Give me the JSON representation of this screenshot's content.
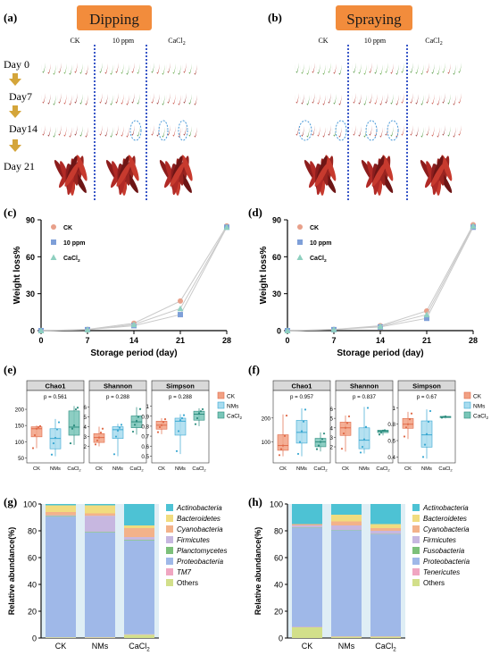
{
  "panel_labels": [
    "(a)",
    "(b)",
    "(c)",
    "(d)",
    "(e)",
    "(f)",
    "(g)",
    "(h)"
  ],
  "photos": {
    "dipping_title": "Dipping",
    "spraying_title": "Spraying",
    "columns": [
      "CK",
      "10 ppm",
      "CaCl2"
    ],
    "days": [
      "Day 0",
      "Day7",
      "Day14",
      "Day 21"
    ]
  },
  "colors": {
    "ck": "#e8a08a",
    "ppm": "#7e9fd8",
    "cacl2": "#8fd0c0",
    "banner": "#f28c3c",
    "divider": "#3a58c8",
    "arrow": "#d4a53a",
    "box_ck": "#f2a184",
    "box_nms": "#a8dcef",
    "box_cacl2": "#79c6b8"
  },
  "chart_data": [
    {
      "panel": "(c)",
      "type": "line",
      "xlabel": "Storage period (day)",
      "ylabel": "Weight loss%",
      "x": [
        0,
        7,
        14,
        21,
        28
      ],
      "xlim": [
        0,
        28
      ],
      "ylim": [
        0,
        90
      ],
      "yticks": [
        "0",
        "30",
        "60",
        "90"
      ],
      "xticks": [
        "0",
        "7",
        "14",
        "21",
        "28"
      ],
      "series": [
        {
          "name": "CK",
          "values": [
            0,
            1,
            6,
            24,
            85
          ]
        },
        {
          "name": "10 ppm",
          "values": [
            0,
            0.8,
            4,
            13,
            84
          ]
        },
        {
          "name": "CaCl2",
          "values": [
            0,
            0.7,
            5,
            18,
            84
          ]
        }
      ]
    },
    {
      "panel": "(d)",
      "type": "line",
      "xlabel": "Storage period (day)",
      "ylabel": "Weight loss%",
      "x": [
        0,
        7,
        14,
        21,
        28
      ],
      "xlim": [
        0,
        28
      ],
      "ylim": [
        0,
        90
      ],
      "yticks": [
        "0",
        "30",
        "60",
        "90"
      ],
      "xticks": [
        "0",
        "7",
        "14",
        "21",
        "28"
      ],
      "series": [
        {
          "name": "CK",
          "values": [
            0,
            1,
            4,
            16,
            86
          ]
        },
        {
          "name": "10 ppm",
          "values": [
            0,
            0.8,
            3,
            10,
            84
          ]
        },
        {
          "name": "CaCl2",
          "values": [
            0,
            0.9,
            3.5,
            13,
            85
          ]
        }
      ]
    },
    {
      "panel": "(e)",
      "type": "box",
      "categories": [
        "CK",
        "NMs",
        "CaCl2"
      ],
      "legend": [
        "CK",
        "NMs",
        "CaCl2"
      ],
      "facets": [
        {
          "title": "Chao1",
          "pvalue": "p = 0.561",
          "ylim": [
            40,
            225
          ],
          "yticks": [
            50,
            100,
            150,
            200
          ],
          "boxes": [
            {
              "min": 80,
              "q1": 115,
              "median": 140,
              "q3": 146,
              "max": 150,
              "points": [
                80,
                120,
                140,
                145,
                148
              ]
            },
            {
              "min": 55,
              "q1": 78,
              "median": 110,
              "q3": 140,
              "max": 170,
              "points": [
                60,
                95,
                112,
                138,
                160
              ]
            },
            {
              "min": 90,
              "q1": 120,
              "median": 145,
              "q3": 195,
              "max": 210,
              "points": [
                95,
                140,
                150,
                200,
                205
              ]
            }
          ]
        },
        {
          "title": "Shannon",
          "pvalue": "p = 0.288",
          "ylim": [
            0.5,
            6.6
          ],
          "yticks": [
            2,
            3,
            4,
            5,
            6
          ],
          "boxes": [
            {
              "min": 2.0,
              "q1": 2.4,
              "median": 2.9,
              "q3": 3.3,
              "max": 4.0,
              "points": [
                2.2,
                2.6,
                2.9,
                3.4,
                3.8
              ]
            },
            {
              "min": 1.0,
              "q1": 2.8,
              "median": 3.7,
              "q3": 4.0,
              "max": 4.3,
              "points": [
                1.2,
                3.0,
                3.6,
                3.9,
                4.2
              ]
            },
            {
              "min": 3.2,
              "q1": 3.9,
              "median": 4.5,
              "q3": 5.1,
              "max": 6.0,
              "points": [
                3.5,
                4.2,
                4.6,
                5.0,
                5.8
              ]
            }
          ]
        },
        {
          "title": "Simpson",
          "pvalue": "p = 0.288",
          "ylim": [
            0.45,
            1.05
          ],
          "yticks": [
            0.5,
            0.6,
            0.7,
            0.8,
            0.9,
            1.0
          ],
          "boxes": [
            {
              "min": 0.72,
              "q1": 0.77,
              "median": 0.81,
              "q3": 0.85,
              "max": 0.88,
              "points": [
                0.74,
                0.79,
                0.81,
                0.84,
                0.87
              ]
            },
            {
              "min": 0.52,
              "q1": 0.71,
              "median": 0.85,
              "q3": 0.88,
              "max": 0.92,
              "points": [
                0.55,
                0.75,
                0.86,
                0.88,
                0.91
              ]
            },
            {
              "min": 0.8,
              "q1": 0.86,
              "median": 0.92,
              "q3": 0.95,
              "max": 0.98,
              "points": [
                0.82,
                0.88,
                0.93,
                0.95,
                0.97
              ]
            }
          ]
        }
      ]
    },
    {
      "panel": "(f)",
      "type": "box",
      "categories": [
        "CK",
        "NMs",
        "CaCl2"
      ],
      "legend": [
        "CK",
        "NMs",
        "CaCl2"
      ],
      "facets": [
        {
          "title": "Chao1",
          "pvalue": "p = 0.957",
          "ylim": [
            20,
            270
          ],
          "yticks": [
            100,
            200
          ],
          "boxes": [
            {
              "min": 40,
              "q1": 65,
              "median": 85,
              "q3": 130,
              "max": 215,
              "points": [
                45,
                70,
                85,
                125,
                210
              ]
            },
            {
              "min": 40,
              "q1": 95,
              "median": 140,
              "q3": 190,
              "max": 240,
              "points": [
                50,
                100,
                145,
                185,
                235
              ]
            },
            {
              "min": 60,
              "q1": 80,
              "median": 100,
              "q3": 115,
              "max": 140,
              "points": [
                70,
                85,
                100,
                112,
                135
              ]
            }
          ]
        },
        {
          "title": "Shannon",
          "pvalue": "p = 0.837",
          "ylim": [
            0.5,
            6.8
          ],
          "yticks": [
            2,
            3,
            4,
            5,
            6
          ],
          "boxes": [
            {
              "min": 1.5,
              "q1": 3.2,
              "median": 4.0,
              "q3": 4.6,
              "max": 5.3,
              "points": [
                1.8,
                3.4,
                4.0,
                4.5,
                5.2
              ]
            },
            {
              "min": 1.3,
              "q1": 1.8,
              "median": 2.7,
              "q3": 4.0,
              "max": 6.2,
              "points": [
                1.4,
                2.0,
                2.8,
                4.1,
                6.1
              ]
            },
            {
              "min": 3.2,
              "q1": 3.5,
              "median": 3.65,
              "q3": 3.75,
              "max": 3.8,
              "points": [
                3.3,
                3.5,
                3.7,
                3.75
              ]
            }
          ]
        },
        {
          "title": "Simpson",
          "pvalue": "p = 0.67",
          "ylim": [
            0.35,
            1.08
          ],
          "yticks": [
            0.4,
            0.6,
            0.8,
            1.0
          ],
          "boxes": [
            {
              "min": 0.62,
              "q1": 0.75,
              "median": 0.8,
              "q3": 0.87,
              "max": 0.95,
              "points": [
                0.65,
                0.76,
                0.8,
                0.86,
                0.93
              ]
            },
            {
              "min": 0.38,
              "q1": 0.52,
              "median": 0.67,
              "q3": 0.84,
              "max": 0.98,
              "points": [
                0.4,
                0.55,
                0.68,
                0.83,
                0.96
              ]
            },
            {
              "min": 0.87,
              "q1": 0.88,
              "median": 0.89,
              "q3": 0.895,
              "max": 0.9,
              "points": [
                0.88,
                0.89,
                0.895
              ]
            }
          ]
        }
      ]
    },
    {
      "panel": "(g)",
      "type": "stacked_bar",
      "ylabel": "Relative abundance(%)",
      "ylim": [
        0,
        100
      ],
      "yticks": [
        "0",
        "20",
        "40",
        "60",
        "80",
        "100"
      ],
      "categories": [
        "CK",
        "NMs",
        "CaCl2"
      ],
      "series": [
        {
          "name": "Others",
          "color": "#d2df8a",
          "values": [
            0.5,
            0.5,
            2.5
          ]
        },
        {
          "name": "TM7",
          "color": "#f0a6c1",
          "values": [
            0.1,
            0.2,
            0.3
          ]
        },
        {
          "name": "Proteobacteria",
          "color": "#9fb8e8",
          "values": [
            90,
            78,
            70
          ]
        },
        {
          "name": "Planctomycetes",
          "color": "#7dc07a",
          "values": [
            0.5,
            0.5,
            0.5
          ]
        },
        {
          "name": "Firmicutes",
          "color": "#c7b7e0",
          "values": [
            0.5,
            12,
            2
          ]
        },
        {
          "name": "Cyanobacteria",
          "color": "#f3b28a",
          "values": [
            2.4,
            1.8,
            6.7
          ]
        },
        {
          "name": "Bacteroidetes",
          "color": "#f1dc7f",
          "values": [
            5,
            6,
            2
          ]
        },
        {
          "name": "Actinobacteria",
          "color": "#4dc2d4",
          "values": [
            1,
            1,
            16
          ]
        }
      ]
    },
    {
      "panel": "(h)",
      "type": "stacked_bar",
      "ylabel": "Relative abundance(%)",
      "ylim": [
        0,
        100
      ],
      "yticks": [
        "0",
        "20",
        "40",
        "60",
        "80",
        "100"
      ],
      "categories": [
        "CK",
        "NMs",
        "CaCl2"
      ],
      "series": [
        {
          "name": "Others",
          "color": "#d2df8a",
          "values": [
            8,
            1,
            1
          ]
        },
        {
          "name": "Tenericutes",
          "color": "#f0a6c1",
          "values": [
            0.3,
            0.3,
            0.3
          ]
        },
        {
          "name": "Proteobacteria",
          "color": "#9fb8e8",
          "values": [
            74,
            79,
            76
          ]
        },
        {
          "name": "Fusobacteria",
          "color": "#7dc07a",
          "values": [
            0.3,
            0.3,
            0.3
          ]
        },
        {
          "name": "Firmicutes",
          "color": "#c7b7e0",
          "values": [
            1.4,
            3.4,
            2.4
          ]
        },
        {
          "name": "Cyanobacteria",
          "color": "#f3b28a",
          "values": [
            1,
            3,
            2
          ]
        },
        {
          "name": "Bacteroidetes",
          "color": "#f1dc7f",
          "values": [
            0,
            5,
            3
          ]
        },
        {
          "name": "Actinobacteria",
          "color": "#4dc2d4",
          "values": [
            15,
            8,
            15
          ]
        }
      ]
    }
  ]
}
